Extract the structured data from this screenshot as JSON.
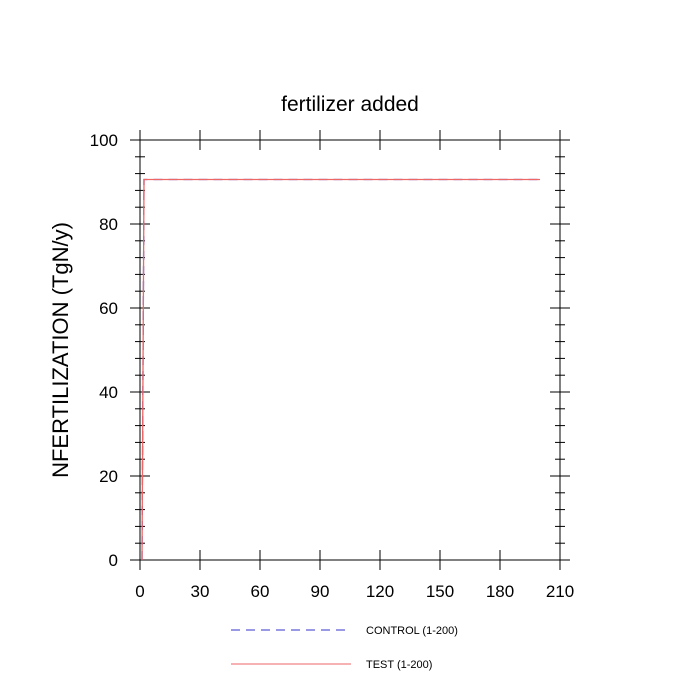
{
  "chart_data": {
    "type": "line",
    "title": "fertilizer added",
    "xlabel": "",
    "ylabel": "NFERTILIZATION  (TgN/y)",
    "xlim": [
      0,
      210
    ],
    "ylim": [
      0,
      100
    ],
    "x_ticks": [
      0,
      30,
      60,
      90,
      120,
      150,
      180,
      210
    ],
    "y_ticks": [
      0,
      20,
      40,
      60,
      80,
      100
    ],
    "x_tick_labels": [
      "0",
      "30",
      "60",
      "90",
      "120",
      "150",
      "180",
      "210"
    ],
    "y_tick_labels": [
      "0",
      "20",
      "40",
      "60",
      "80",
      "100"
    ],
    "grid": false,
    "legend_position": "bottom",
    "series": [
      {
        "name": "CONTROL (1-200)",
        "color": "#3333cc",
        "style": "dashed",
        "x": [
          1,
          2,
          200
        ],
        "y": [
          0,
          90.6,
          90.6
        ]
      },
      {
        "name": "TEST (1-200)",
        "color": "#ee6666",
        "style": "solid",
        "x": [
          1,
          2,
          200
        ],
        "y": [
          0,
          90.6,
          90.6
        ]
      }
    ]
  }
}
